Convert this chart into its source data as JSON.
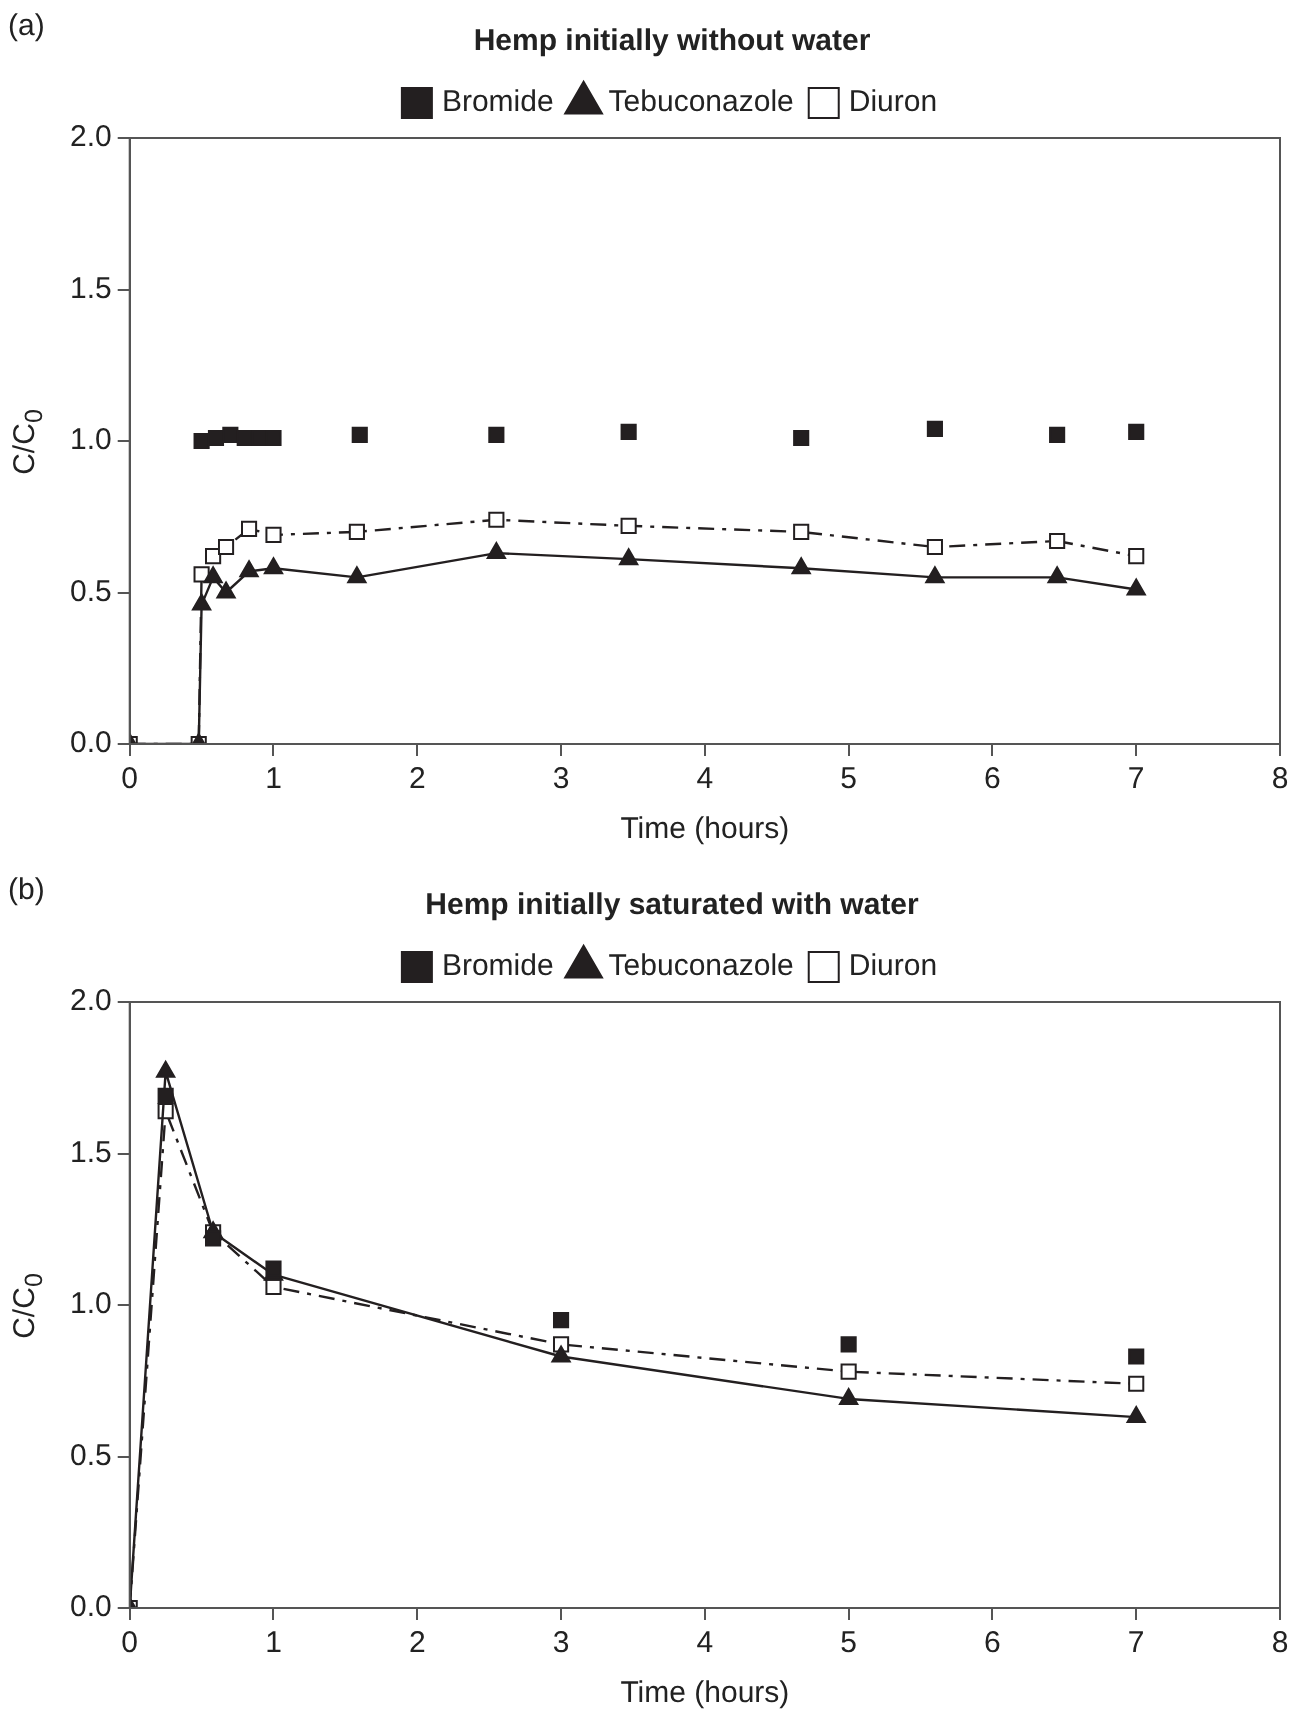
{
  "chart_data": [
    {
      "type": "line",
      "title": "Hemp initially without water",
      "xlabel": "Time (hours)",
      "ylabel": "C/C$_{0}$",
      "annotations": [
        "(a)"
      ],
      "xlim": [
        0,
        8
      ],
      "xticks": [
        0,
        1,
        2,
        3,
        4,
        5,
        6,
        7,
        8
      ],
      "ylim": [
        0,
        2
      ],
      "yticks": [
        {
          "value": 0,
          "label": "0.0"
        },
        {
          "value": 0.5,
          "label": "0.5"
        },
        {
          "value": 1,
          "label": "1.0"
        },
        {
          "value": 1.5,
          "label": "1.5"
        },
        {
          "value": 2,
          "label": "2.0"
        }
      ],
      "grid": false,
      "legend": "top",
      "series": [
        {
          "name": "Bromide",
          "type": "scatter",
          "marker": "square",
          "color": "#231f20",
          "x": [
            0.5,
            0.6,
            0.7,
            0.8,
            0.9,
            1.0,
            1.6,
            2.55,
            3.47,
            4.67,
            5.6,
            6.45,
            7.0
          ],
          "values": [
            1.0,
            1.01,
            1.02,
            1.01,
            1.01,
            1.01,
            1.02,
            1.02,
            1.03,
            1.01,
            1.04,
            1.02,
            1.03
          ]
        },
        {
          "name": "Tebuconazole",
          "type": "line",
          "marker": "triangle",
          "line_style": "solid",
          "color": "#231f20",
          "x": [
            0,
            0.48,
            0.5,
            0.58,
            0.67,
            0.83,
            1.0,
            1.58,
            2.55,
            3.47,
            4.67,
            5.6,
            6.45,
            7.0
          ],
          "values": [
            0,
            0,
            0.46,
            0.55,
            0.5,
            0.57,
            0.58,
            0.55,
            0.63,
            0.61,
            0.58,
            0.55,
            0.55,
            0.51
          ]
        },
        {
          "name": "Diuron",
          "type": "line",
          "marker": "square",
          "line_style": "dashed",
          "color": "#231f20",
          "x": [
            0,
            0.48,
            0.5,
            0.58,
            0.67,
            0.83,
            1.0,
            1.58,
            2.55,
            3.47,
            4.67,
            5.6,
            6.45,
            7.0
          ],
          "values": [
            0,
            0,
            0.56,
            0.62,
            0.65,
            0.71,
            0.69,
            0.7,
            0.74,
            0.72,
            0.7,
            0.65,
            0.67,
            0.62
          ]
        }
      ]
    },
    {
      "type": "line",
      "title": "Hemp initially saturated with water",
      "xlabel": "Time (hours)",
      "ylabel": "C/C$_{0}$",
      "annotations": [
        "(b)"
      ],
      "xlim": [
        0,
        8
      ],
      "xticks": [
        0,
        1,
        2,
        3,
        4,
        5,
        6,
        7,
        8
      ],
      "ylim": [
        0,
        2
      ],
      "yticks": [
        {
          "value": 0,
          "label": "0.0"
        },
        {
          "value": 0.5,
          "label": "0.5"
        },
        {
          "value": 1,
          "label": "1.0"
        },
        {
          "value": 1.5,
          "label": "1.5"
        },
        {
          "value": 2,
          "label": "2.0"
        }
      ],
      "grid": false,
      "legend": "top",
      "series": [
        {
          "name": "Bromide",
          "type": "scatter",
          "marker": "square",
          "color": "#231f20",
          "x": [
            0.25,
            0.58,
            1.0,
            3,
            5,
            7
          ],
          "values": [
            1.69,
            1.22,
            1.12,
            0.95,
            0.87,
            0.83
          ]
        },
        {
          "name": "Tebuconazole",
          "type": "line",
          "marker": "triangle",
          "line_style": "solid",
          "color": "#231f20",
          "x": [
            0,
            0.25,
            0.58,
            1.0,
            3,
            5,
            7
          ],
          "values": [
            0,
            1.77,
            1.24,
            1.1,
            0.83,
            0.69,
            0.63
          ]
        },
        {
          "name": "Diuron",
          "type": "line",
          "marker": "square",
          "line_style": "dashed",
          "color": "#231f20",
          "x": [
            0,
            0.25,
            0.58,
            1.0,
            3,
            5,
            7
          ],
          "values": [
            0,
            1.64,
            1.24,
            1.06,
            0.87,
            0.78,
            0.74
          ]
        }
      ]
    }
  ]
}
